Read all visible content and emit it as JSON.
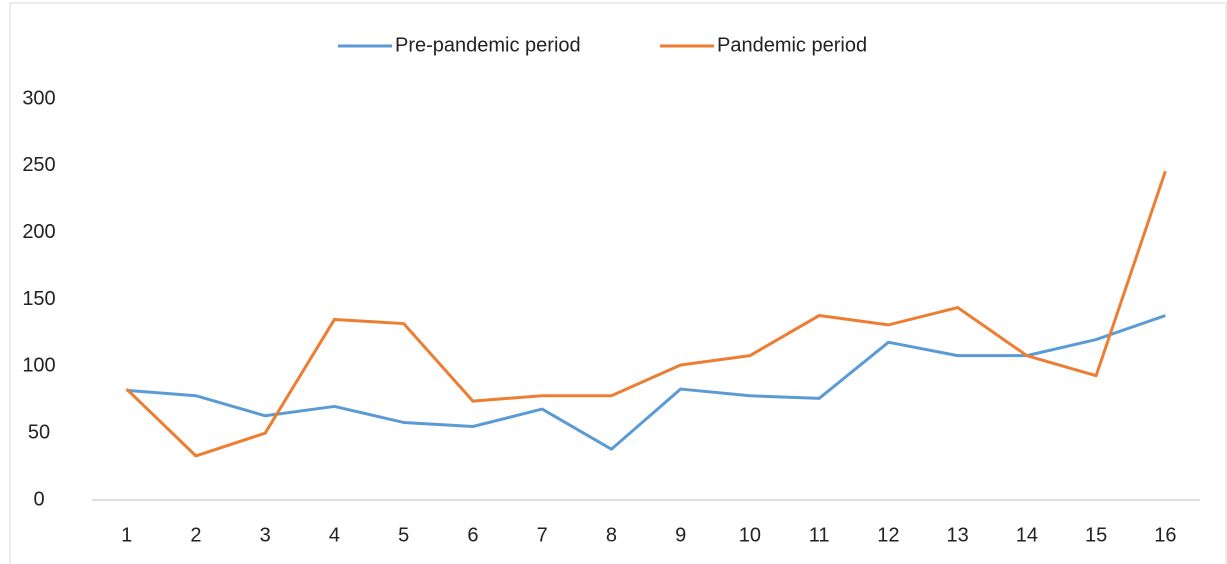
{
  "chart_data": {
    "type": "line",
    "categories": [
      "1",
      "2",
      "3",
      "4",
      "5",
      "6",
      "7",
      "8",
      "9",
      "10",
      "11",
      "12",
      "13",
      "14",
      "15",
      "16"
    ],
    "series": [
      {
        "name": "Pre-pandemic period",
        "color": "#5b9bd5",
        "values": [
          82,
          78,
          63,
          70,
          58,
          55,
          68,
          38,
          83,
          78,
          76,
          118,
          108,
          108,
          120,
          138
        ]
      },
      {
        "name": "Pandemic period",
        "color": "#ed7d31",
        "values": [
          83,
          33,
          50,
          135,
          132,
          74,
          78,
          78,
          101,
          108,
          138,
          131,
          144,
          108,
          93,
          246
        ]
      }
    ],
    "ylim": [
      0,
      300
    ],
    "yticks": [
      0,
      50,
      100,
      150,
      200,
      250,
      300
    ],
    "grid": false,
    "legend": "top"
  }
}
